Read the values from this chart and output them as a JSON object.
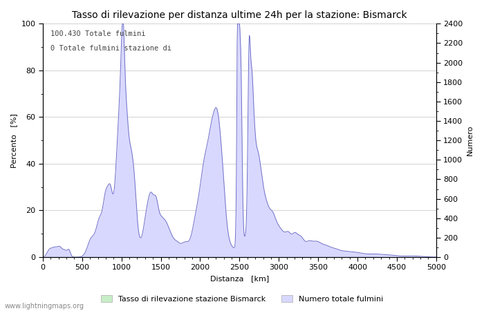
{
  "title": "Tasso di rilevazione per distanza ultime 24h per la stazione: Bismarck",
  "xlabel": "Distanza   [km]",
  "ylabel_left": "Percento   [%]",
  "ylabel_right": "Numero",
  "annotation_line1": "100.430 Totale fulmini",
  "annotation_line2": "0 Totale fulmini stazione di",
  "legend_label1": "Tasso di rilevazione stazione Bismarck",
  "legend_label2": "Numero totale fulmini",
  "watermark": "www.lightningmaps.org",
  "xlim": [
    0,
    5000
  ],
  "ylim_left": [
    0,
    100
  ],
  "ylim_right": [
    0,
    2400
  ],
  "fill_color_blue": "#d8d8ff",
  "fill_color_green": "#c8eec8",
  "line_color_blue": "#7070c8",
  "line_color_green": "#70b870",
  "background_color": "#ffffff",
  "grid_color": "#c0c0c0",
  "title_fontsize": 10,
  "label_fontsize": 8,
  "tick_fontsize": 8,
  "xticks": [
    0,
    500,
    1000,
    1500,
    2000,
    2500,
    3000,
    3500,
    4000,
    4500,
    5000
  ],
  "yticks_left": [
    0,
    20,
    40,
    60,
    80,
    100
  ],
  "yticks_right": [
    0,
    200,
    400,
    600,
    800,
    1000,
    1200,
    1400,
    1600,
    1800,
    2000,
    2200,
    2400
  ],
  "left_minor_ticks": [
    10,
    30,
    50,
    70,
    90
  ],
  "right_minor_ticks": [
    100,
    300,
    500,
    700,
    900,
    1100,
    1300,
    1500,
    1700,
    1900,
    2100,
    2300
  ]
}
